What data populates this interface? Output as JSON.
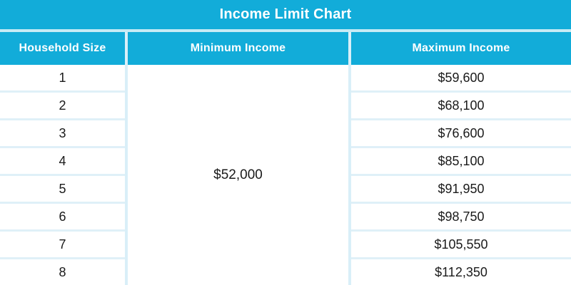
{
  "title": "Income Limit Chart",
  "colors": {
    "header_bg": "#12ACD9",
    "header_text": "#FFFFFF",
    "separator_light_cyan": "#C6EBF5",
    "row_divider": "#DFF0F8",
    "body_text": "#1A1A1A",
    "cell_bg": "#FFFFFF"
  },
  "table": {
    "columns": [
      "Household Size",
      "Minimum Income",
      "Maximum Income"
    ],
    "minimum_income_merged": "$52,000",
    "rows": [
      {
        "household_size": "1",
        "maximum_income": "$59,600"
      },
      {
        "household_size": "2",
        "maximum_income": "$68,100"
      },
      {
        "household_size": "3",
        "maximum_income": "$76,600"
      },
      {
        "household_size": "4",
        "maximum_income": "$85,100"
      },
      {
        "household_size": "5",
        "maximum_income": "$91,950"
      },
      {
        "household_size": "6",
        "maximum_income": "$98,750"
      },
      {
        "household_size": "7",
        "maximum_income": "$105,550"
      },
      {
        "household_size": "8",
        "maximum_income": "$112,350"
      }
    ]
  },
  "chart_data": {
    "type": "table",
    "title": "Income Limit Chart",
    "columns": [
      "Household Size",
      "Minimum Income",
      "Maximum Income"
    ],
    "rows": [
      [
        "1",
        "$52,000",
        "$59,600"
      ],
      [
        "2",
        "$52,000",
        "$68,100"
      ],
      [
        "3",
        "$52,000",
        "$76,600"
      ],
      [
        "4",
        "$52,000",
        "$85,100"
      ],
      [
        "5",
        "$52,000",
        "$91,950"
      ],
      [
        "6",
        "$52,000",
        "$98,750"
      ],
      [
        "7",
        "$52,000",
        "$105,550"
      ],
      [
        "8",
        "$52,000",
        "$112,350"
      ]
    ],
    "notes": "Minimum Income column is rendered as a single merged cell containing $52,000 spanning all 8 rows"
  }
}
